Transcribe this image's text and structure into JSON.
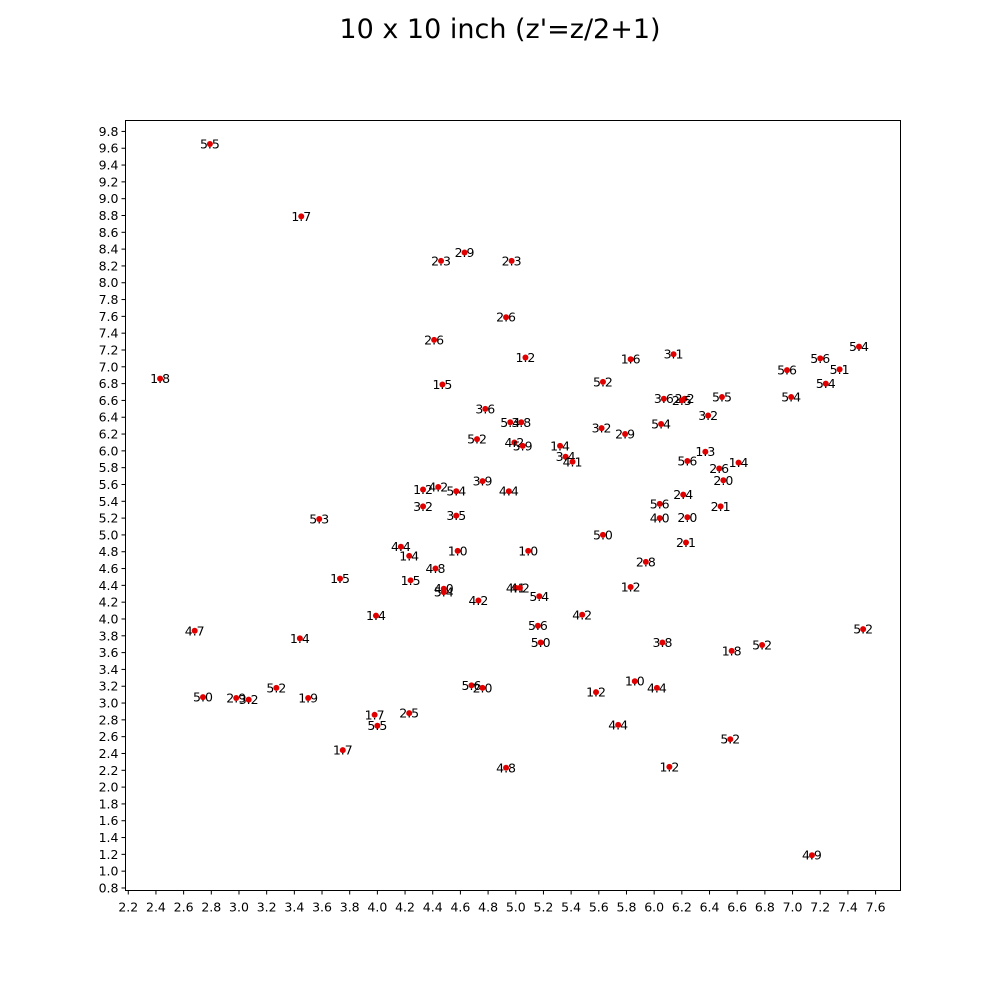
{
  "chart_data": {
    "type": "scatter",
    "title": "10 x 10 inch (z'=z/2+1)",
    "xlabel": "",
    "ylabel": "",
    "xlim": [
      2.18,
      7.78
    ],
    "ylim": [
      0.77,
      9.93
    ],
    "x_ticks": [
      "2.2",
      "2.4",
      "2.6",
      "2.8",
      "3.0",
      "3.2",
      "3.4",
      "3.6",
      "3.8",
      "4.0",
      "4.2",
      "4.4",
      "4.6",
      "4.8",
      "5.0",
      "5.2",
      "5.4",
      "5.6",
      "5.8",
      "6.0",
      "6.2",
      "6.4",
      "6.6",
      "6.8",
      "7.0",
      "7.2",
      "7.4",
      "7.6"
    ],
    "y_ticks": [
      "0.8",
      "1.0",
      "1.2",
      "1.4",
      "1.6",
      "1.8",
      "2.0",
      "2.2",
      "2.4",
      "2.6",
      "2.8",
      "3.0",
      "3.2",
      "3.4",
      "3.6",
      "3.8",
      "4.0",
      "4.2",
      "4.4",
      "4.6",
      "4.8",
      "5.0",
      "5.2",
      "5.4",
      "5.6",
      "5.8",
      "6.0",
      "6.2",
      "6.4",
      "6.6",
      "6.8",
      "7.0",
      "7.2",
      "7.4",
      "7.6",
      "7.8",
      "8.0",
      "8.2",
      "8.4",
      "8.6",
      "8.8",
      "9.0",
      "9.2",
      "9.4",
      "9.6",
      "9.8"
    ],
    "marker_color": "#e00000",
    "grid": false,
    "points": [
      {
        "x": 2.79,
        "y": 9.65,
        "label": "5.5"
      },
      {
        "x": 3.45,
        "y": 8.79,
        "label": "1.7"
      },
      {
        "x": 4.46,
        "y": 8.26,
        "label": "2.3"
      },
      {
        "x": 4.63,
        "y": 8.36,
        "label": "2.9"
      },
      {
        "x": 4.97,
        "y": 8.26,
        "label": "2.3"
      },
      {
        "x": 4.93,
        "y": 7.59,
        "label": "2.6"
      },
      {
        "x": 4.41,
        "y": 7.32,
        "label": "2.6"
      },
      {
        "x": 5.07,
        "y": 7.11,
        "label": "1.2"
      },
      {
        "x": 2.43,
        "y": 6.86,
        "label": "1.8"
      },
      {
        "x": 4.47,
        "y": 6.79,
        "label": "1.5"
      },
      {
        "x": 5.83,
        "y": 7.09,
        "label": "1.6"
      },
      {
        "x": 6.14,
        "y": 7.15,
        "label": "3.1"
      },
      {
        "x": 5.63,
        "y": 6.82,
        "label": "5.2"
      },
      {
        "x": 7.48,
        "y": 7.24,
        "label": "5.4"
      },
      {
        "x": 7.2,
        "y": 7.1,
        "label": "5.6"
      },
      {
        "x": 7.34,
        "y": 6.97,
        "label": "5.1"
      },
      {
        "x": 6.96,
        "y": 6.96,
        "label": "5.6"
      },
      {
        "x": 7.24,
        "y": 6.8,
        "label": "5.4"
      },
      {
        "x": 6.99,
        "y": 6.64,
        "label": "5.4"
      },
      {
        "x": 6.49,
        "y": 6.64,
        "label": "5.5"
      },
      {
        "x": 6.07,
        "y": 6.62,
        "label": "3.6"
      },
      {
        "x": 6.22,
        "y": 6.62,
        "label": "2.2"
      },
      {
        "x": 6.2,
        "y": 6.6,
        "label": "2.5"
      },
      {
        "x": 6.39,
        "y": 6.42,
        "label": "3.2"
      },
      {
        "x": 4.78,
        "y": 6.5,
        "label": "3.6"
      },
      {
        "x": 4.96,
        "y": 6.34,
        "label": "5.4"
      },
      {
        "x": 5.04,
        "y": 6.34,
        "label": "3.8"
      },
      {
        "x": 6.05,
        "y": 6.32,
        "label": "5.4"
      },
      {
        "x": 5.62,
        "y": 6.27,
        "label": "3.2"
      },
      {
        "x": 5.79,
        "y": 6.2,
        "label": "2.9"
      },
      {
        "x": 4.72,
        "y": 6.14,
        "label": "5.2"
      },
      {
        "x": 4.99,
        "y": 6.1,
        "label": "4.2"
      },
      {
        "x": 5.05,
        "y": 6.06,
        "label": "5.9"
      },
      {
        "x": 5.32,
        "y": 6.06,
        "label": "1.4"
      },
      {
        "x": 5.36,
        "y": 5.93,
        "label": "3.4"
      },
      {
        "x": 5.41,
        "y": 5.87,
        "label": "4.1"
      },
      {
        "x": 6.37,
        "y": 5.99,
        "label": "1.3"
      },
      {
        "x": 6.24,
        "y": 5.88,
        "label": "5.6"
      },
      {
        "x": 6.61,
        "y": 5.86,
        "label": "1.4"
      },
      {
        "x": 6.47,
        "y": 5.79,
        "label": "2.6"
      },
      {
        "x": 6.5,
        "y": 5.65,
        "label": "2.0"
      },
      {
        "x": 4.76,
        "y": 5.64,
        "label": "3.9"
      },
      {
        "x": 4.33,
        "y": 5.54,
        "label": "1.2"
      },
      {
        "x": 4.44,
        "y": 5.57,
        "label": "4.2"
      },
      {
        "x": 4.57,
        "y": 5.52,
        "label": "5.4"
      },
      {
        "x": 4.95,
        "y": 5.52,
        "label": "4.4"
      },
      {
        "x": 6.21,
        "y": 5.48,
        "label": "2.4"
      },
      {
        "x": 4.33,
        "y": 5.34,
        "label": "3.2"
      },
      {
        "x": 4.57,
        "y": 5.23,
        "label": "3.5"
      },
      {
        "x": 6.04,
        "y": 5.37,
        "label": "5.6"
      },
      {
        "x": 6.04,
        "y": 5.2,
        "label": "4.0"
      },
      {
        "x": 6.48,
        "y": 5.34,
        "label": "2.1"
      },
      {
        "x": 6.24,
        "y": 5.21,
        "label": "2.0"
      },
      {
        "x": 3.58,
        "y": 5.19,
        "label": "5.3"
      },
      {
        "x": 5.63,
        "y": 5.0,
        "label": "5.0"
      },
      {
        "x": 6.23,
        "y": 4.91,
        "label": "2.1"
      },
      {
        "x": 4.17,
        "y": 4.86,
        "label": "4.4"
      },
      {
        "x": 4.23,
        "y": 4.75,
        "label": "1.4"
      },
      {
        "x": 4.58,
        "y": 4.81,
        "label": "1.0"
      },
      {
        "x": 5.09,
        "y": 4.81,
        "label": "1.0"
      },
      {
        "x": 5.94,
        "y": 4.68,
        "label": "2.8"
      },
      {
        "x": 4.42,
        "y": 4.6,
        "label": "4.8"
      },
      {
        "x": 3.73,
        "y": 4.48,
        "label": "1.5"
      },
      {
        "x": 4.24,
        "y": 4.46,
        "label": "1.5"
      },
      {
        "x": 4.48,
        "y": 4.36,
        "label": "4.0"
      },
      {
        "x": 4.48,
        "y": 4.32,
        "label": "5.4"
      },
      {
        "x": 5.0,
        "y": 4.37,
        "label": "4.1"
      },
      {
        "x": 5.03,
        "y": 4.37,
        "label": "4.2"
      },
      {
        "x": 5.83,
        "y": 4.38,
        "label": "1.2"
      },
      {
        "x": 5.17,
        "y": 4.27,
        "label": "5.4"
      },
      {
        "x": 4.73,
        "y": 4.22,
        "label": "4.2"
      },
      {
        "x": 3.99,
        "y": 4.04,
        "label": "1.4"
      },
      {
        "x": 5.48,
        "y": 4.05,
        "label": "4.2"
      },
      {
        "x": 2.68,
        "y": 3.86,
        "label": "4.7"
      },
      {
        "x": 3.44,
        "y": 3.77,
        "label": "1.4"
      },
      {
        "x": 5.16,
        "y": 3.92,
        "label": "5.6"
      },
      {
        "x": 5.18,
        "y": 3.72,
        "label": "5.0"
      },
      {
        "x": 6.06,
        "y": 3.72,
        "label": "3.8"
      },
      {
        "x": 6.56,
        "y": 3.62,
        "label": "1.8"
      },
      {
        "x": 6.78,
        "y": 3.69,
        "label": "5.2"
      },
      {
        "x": 7.51,
        "y": 3.88,
        "label": "5.2"
      },
      {
        "x": 4.68,
        "y": 3.21,
        "label": "5.6"
      },
      {
        "x": 4.76,
        "y": 3.18,
        "label": "2.0"
      },
      {
        "x": 5.86,
        "y": 3.26,
        "label": "1.0"
      },
      {
        "x": 6.02,
        "y": 3.18,
        "label": "4.4"
      },
      {
        "x": 3.27,
        "y": 3.18,
        "label": "5.2"
      },
      {
        "x": 2.74,
        "y": 3.07,
        "label": "5.0"
      },
      {
        "x": 2.98,
        "y": 3.06,
        "label": "2.9"
      },
      {
        "x": 3.07,
        "y": 3.04,
        "label": "3.2"
      },
      {
        "x": 3.5,
        "y": 3.06,
        "label": "1.9"
      },
      {
        "x": 5.58,
        "y": 3.13,
        "label": "1.2"
      },
      {
        "x": 3.98,
        "y": 2.86,
        "label": "1.7"
      },
      {
        "x": 4.23,
        "y": 2.88,
        "label": "2.5"
      },
      {
        "x": 4.0,
        "y": 2.73,
        "label": "5.5"
      },
      {
        "x": 5.74,
        "y": 2.74,
        "label": "4.4"
      },
      {
        "x": 6.55,
        "y": 2.57,
        "label": "5.2"
      },
      {
        "x": 3.75,
        "y": 2.44,
        "label": "1.7"
      },
      {
        "x": 4.93,
        "y": 2.23,
        "label": "4.8"
      },
      {
        "x": 6.11,
        "y": 2.24,
        "label": "1.2"
      },
      {
        "x": 7.14,
        "y": 1.19,
        "label": "4.9"
      }
    ]
  }
}
